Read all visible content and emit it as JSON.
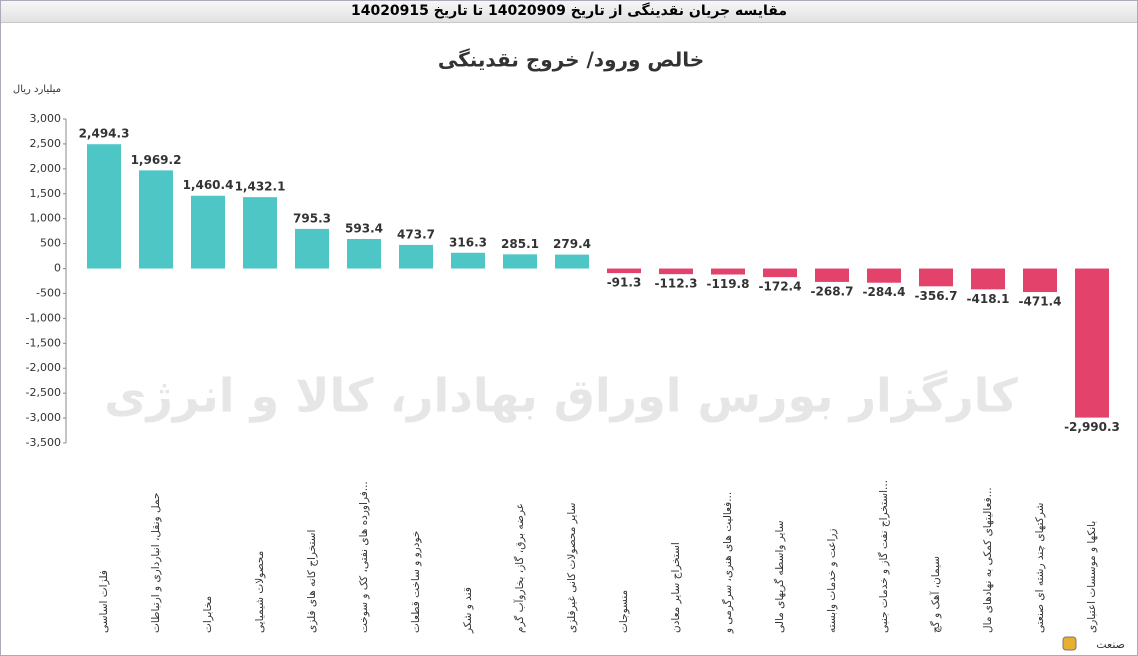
{
  "window_title": "مقایسه جریان نقدینگی از تاریخ 14020909 تا تاریخ 14020915",
  "chart_data": {
    "type": "bar",
    "title": "خالص ورود/ خروج نقدینگی",
    "y_label": "میلیارد ریال",
    "x_label": "صنعت",
    "watermark": "کارگزار بورس اوراق بهادار، کالا و انرژی",
    "categories": [
      "فلزات اساسی",
      "حمل ونقل، انبارداری و ارتباطات",
      "مخابرات",
      "محصولات شیمیایی",
      "استخراج کانه های فلزی",
      "فراورده های نفتی، کک و سوخت...",
      "خودرو و ساخت قطعات",
      "قند و شکر",
      "عرضه برق، گاز، بخاروآب گرم",
      "سایر محصولات کانی غیرفلزی",
      "منسوجات",
      "استخراج سایر معادن",
      "فعالیت های هنری، سرگرمی و...",
      "سایر واسطه گریهای مالی",
      "زراعت و خدمات وابسته",
      "استخراج نفت گاز و خدمات جنبی...",
      "سیمان، آهک و گچ",
      "فعالیتهای کمکی به نهادهای مال...",
      "شرکتهای چند رشته ای صنعتی",
      "بانکها و موسسات اعتباری"
    ],
    "values": [
      2494.3,
      1969.2,
      1460.4,
      1432.1,
      795.3,
      593.4,
      473.7,
      316.3,
      285.1,
      279.4,
      -91.3,
      -112.3,
      -119.8,
      -172.4,
      -268.7,
      -284.4,
      -356.7,
      -418.1,
      -471.4,
      -2990.3
    ],
    "value_labels": [
      "2,494.3",
      "1,969.2",
      "1,460.4",
      "1,432.1",
      "795.3",
      "593.4",
      "473.7",
      "316.3",
      "285.1",
      "279.4",
      "-91.3",
      "-112.3",
      "-119.8",
      "-172.4",
      "-268.7",
      "-284.4",
      "-356.7",
      "-418.1",
      "-471.4",
      "-2,990.3"
    ],
    "positive_color": "#4fc6c6",
    "negative_color": "#e3436b",
    "ylim": [
      -3500,
      3000
    ],
    "yticks": [
      {
        "value": 3000,
        "label": "3,000"
      },
      {
        "value": 2500,
        "label": "2,500"
      },
      {
        "value": 2000,
        "label": "2,000"
      },
      {
        "value": 1500,
        "label": "1,500"
      },
      {
        "value": 1000,
        "label": "1,000"
      },
      500,
      0,
      -500,
      {
        "value": -1000,
        "label": "-1,000"
      },
      {
        "value": -1500,
        "label": "-1,500"
      },
      {
        "value": -2000,
        "label": "-2,000"
      },
      {
        "value": -2500,
        "label": "-2,500"
      },
      {
        "value": -3000,
        "label": "-3,000"
      },
      {
        "value": -3500,
        "label": "-3,500"
      }
    ],
    "grid": false
  }
}
